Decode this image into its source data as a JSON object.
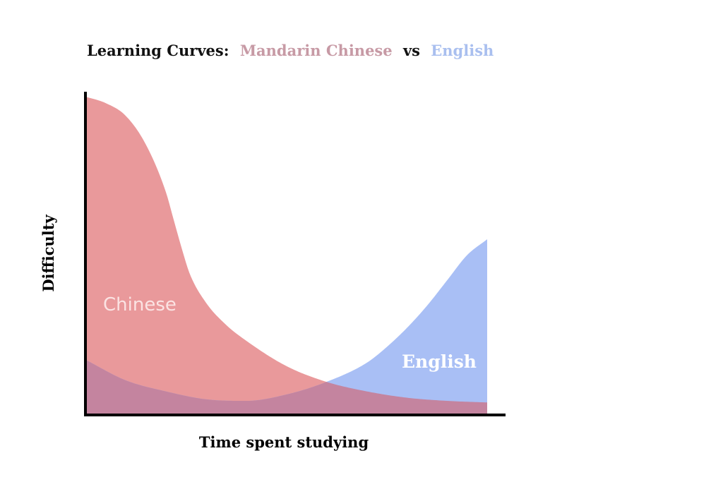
{
  "chart_data": {
    "type": "area",
    "title": {
      "lead": "Learning Curves:",
      "series_a": "Mandarin Chinese",
      "joiner": "vs",
      "series_b": "English"
    },
    "xlabel": "Time spent studying",
    "ylabel": "Difficulty",
    "xlim": [
      0,
      100
    ],
    "ylim": [
      0,
      100
    ],
    "grid": false,
    "legend": "none",
    "series": [
      {
        "name": "Chinese",
        "color": "#e9999b",
        "overlap_color": "#c4849f",
        "x": [
          0,
          5,
          10,
          15,
          20,
          22,
          24,
          26,
          30,
          35,
          40,
          50,
          60,
          70,
          80,
          90,
          100
        ],
        "values": [
          100,
          98,
          94,
          85,
          70,
          61,
          52,
          44,
          35,
          28,
          23,
          15,
          10,
          7,
          5,
          4,
          3.5
        ]
      },
      {
        "name": "English",
        "color": "#a9bff5",
        "x": [
          0,
          10,
          20,
          30,
          40,
          50,
          60,
          70,
          75,
          80,
          85,
          90,
          95,
          100
        ],
        "values": [
          17,
          10.5,
          7,
          4.5,
          4,
          6,
          10,
          16,
          21,
          27,
          34,
          42,
          50,
          55
        ]
      }
    ]
  }
}
